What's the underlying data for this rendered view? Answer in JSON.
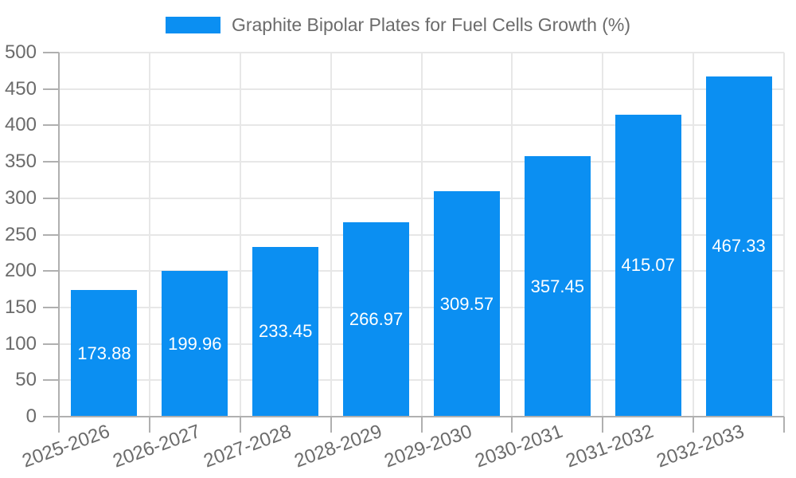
{
  "legend": {
    "series_label": "Graphite Bipolar Plates for Fuel Cells Growth (%)"
  },
  "chart_data": {
    "type": "bar",
    "title": "Graphite Bipolar Plates for Fuel Cells Growth (%)",
    "categories": [
      "2025-2026",
      "2026-2027",
      "2027-2028",
      "2028-2029",
      "2029-2030",
      "2030-2031",
      "2031-2032",
      "2032-2033"
    ],
    "values": [
      173.88,
      199.96,
      233.45,
      266.97,
      309.57,
      357.45,
      415.07,
      467.33
    ],
    "value_labels": [
      "173.88",
      "199.96",
      "233.45",
      "266.97",
      "309.57",
      "357.45",
      "415.07",
      "467.33"
    ],
    "xlabel": "",
    "ylabel": "",
    "ylim": [
      0,
      500
    ],
    "ytick_step": 50,
    "ytick_labels": [
      "0",
      "50",
      "100",
      "150",
      "200",
      "250",
      "300",
      "350",
      "400",
      "450",
      "500"
    ],
    "grid": true,
    "legend_position": "top",
    "x_label_rotation_deg": -20,
    "colors": {
      "bar": "#0B8FF2",
      "bar_label": "#FFFFFF",
      "axis_text": "#6B6B6B",
      "grid_line": "#E7E7E7",
      "axis_line": "#B0B0B0",
      "background": "#FFFFFF"
    }
  }
}
